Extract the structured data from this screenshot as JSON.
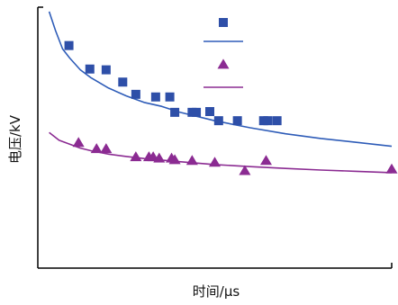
{
  "chart_data": {
    "type": "scatter",
    "title": "",
    "xlabel": "时间/μs",
    "ylabel": "电压/kV",
    "xlim": [
      0,
      100
    ],
    "ylim": [
      0,
      100
    ],
    "grid": false,
    "legend": {
      "placement": "top-center",
      "entries": [
        {
          "marker": "square",
          "color": "#2e4fa8"
        },
        {
          "line": true,
          "color": "#2e5cb8"
        },
        {
          "marker": "triangle",
          "color": "#8b2b92"
        },
        {
          "line": true,
          "color": "#8b2b92"
        }
      ]
    },
    "series": [
      {
        "kind": "points",
        "marker": "square",
        "color": "#2e4fa8",
        "x": [
          8.8,
          14.7,
          19.3,
          24.0,
          27.7,
          33.3,
          37.3,
          38.7,
          43.6,
          44.8,
          48.6,
          51.1,
          56.4,
          63.8,
          65.0,
          67.6
        ],
        "y": [
          85.3,
          76.3,
          76.0,
          71.3,
          66.6,
          65.6,
          65.6,
          59.7,
          59.7,
          59.7,
          60.0,
          56.5,
          56.5,
          56.5,
          56.5,
          56.5
        ]
      },
      {
        "kind": "line",
        "color": "#2e5cb8",
        "x": [
          3.2,
          5.0,
          7.0,
          9.0,
          12.0,
          15.0,
          20.0,
          25.0,
          30.0,
          35.0,
          40.0,
          50.0,
          60.0,
          70.0,
          80.0,
          90.0,
          100.0
        ],
        "y": [
          98.3,
          91.0,
          84.0,
          80.5,
          76.0,
          73.0,
          69.0,
          66.0,
          63.5,
          62.0,
          59.8,
          56.5,
          53.8,
          51.5,
          49.7,
          48.2,
          46.7
        ]
      },
      {
        "kind": "points",
        "marker": "triangle",
        "color": "#8b2b92",
        "x": [
          11.5,
          16.6,
          19.3,
          27.7,
          31.4,
          32.6,
          34.3,
          37.8,
          38.7,
          43.6,
          50.0,
          58.5,
          64.5,
          100.0
        ],
        "y": [
          48.0,
          45.6,
          45.6,
          42.5,
          42.5,
          42.5,
          42.0,
          42.0,
          41.4,
          41.1,
          40.4,
          37.2,
          41.1,
          37.8
        ]
      },
      {
        "kind": "line",
        "color": "#8b2b92",
        "x": [
          3.2,
          6.0,
          9.0,
          12.0,
          15.0,
          20.0,
          25.0,
          30.0,
          40.0,
          50.0,
          60.0,
          70.0,
          80.0,
          90.0,
          100.0
        ],
        "y": [
          52.0,
          49.0,
          47.5,
          46.0,
          45.0,
          43.7,
          42.8,
          42.0,
          40.8,
          39.7,
          38.9,
          38.2,
          37.6,
          37.1,
          36.6
        ]
      }
    ]
  }
}
